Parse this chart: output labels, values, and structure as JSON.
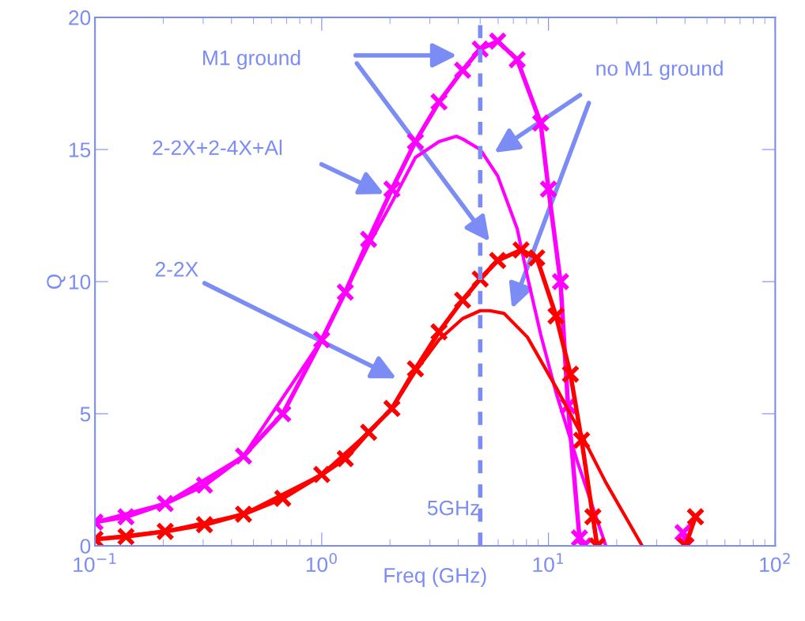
{
  "chart_data": {
    "type": "line",
    "xlabel": "Freq (GHz)",
    "ylabel": "Q",
    "log": "x",
    "xlim": [
      0.1,
      100
    ],
    "ylim": [
      0,
      20
    ],
    "xticks": [
      {
        "value": 0.1,
        "label": "10$^{−1}$"
      },
      {
        "value": 1,
        "label": "10$^{0}$"
      },
      {
        "value": 10,
        "label": "10$^{1}$"
      },
      {
        "value": 100,
        "label": "10$^{2}$"
      }
    ],
    "yticks": [
      0,
      5,
      10,
      15,
      20
    ],
    "grid": false,
    "legend": false,
    "series": [
      {
        "marker": "cross",
        "color": "#ff00ff",
        "x": [
          0.1,
          0.137,
          0.204,
          0.304,
          0.452,
          0.673,
          1.0,
          1.27,
          1.61,
          2.04,
          2.59,
          3.29,
          4.18,
          5.0,
          5.97,
          7.28,
          9.24,
          10,
          11.3,
          12.2,
          13.7,
          14.3,
          20,
          39.2,
          40.4
        ],
        "values": [
          0.9,
          1.1,
          1.6,
          2.3,
          3.4,
          5.0,
          7.8,
          9.6,
          11.6,
          13.5,
          15.3,
          16.8,
          18.0,
          18.8,
          19.1,
          18.4,
          16.0,
          13.5,
          10.0,
          5.3,
          0.3,
          0,
          null,
          0.5,
          0
        ]
      },
      {
        "marker": "none",
        "color": "#ff00ff",
        "x": [
          0.1,
          0.204,
          0.452,
          1.0,
          1.61,
          2.04,
          2.59,
          3.29,
          3.92,
          4.18,
          5.0,
          5.97,
          7.28,
          8.07,
          9.24,
          10.8,
          13.4,
          17.9
        ],
        "values": [
          0.9,
          1.6,
          3.4,
          7.8,
          11.4,
          13.0,
          14.7,
          15.3,
          15.5,
          15.4,
          15.0,
          14.0,
          12.0,
          10.2,
          8.0,
          5.8,
          3.2,
          0
        ]
      },
      {
        "marker": "cross",
        "color": "#ff0000",
        "x": [
          0.1,
          0.137,
          0.204,
          0.304,
          0.452,
          0.673,
          1.0,
          1.27,
          1.61,
          2.04,
          2.59,
          3.29,
          4.18,
          5.0,
          5.97,
          7.57,
          8.88,
          10.8,
          12.5,
          14.0,
          15.7,
          16.4,
          20,
          40.2,
          44.5
        ],
        "values": [
          0.25,
          0.35,
          0.55,
          0.8,
          1.2,
          1.8,
          2.7,
          3.3,
          4.3,
          5.2,
          6.7,
          8.1,
          9.3,
          10.1,
          10.8,
          11.2,
          10.9,
          8.7,
          6.5,
          4.0,
          1.1,
          0,
          null,
          0,
          1.1
        ]
      },
      {
        "marker": "none",
        "color": "#ff0000",
        "x": [
          0.1,
          0.204,
          0.452,
          1.0,
          1.61,
          2.04,
          2.59,
          3.29,
          4.18,
          5.0,
          5.51,
          6.36,
          8.07,
          10.8,
          14.0,
          17.9,
          25.9
        ],
        "values": [
          0.25,
          0.55,
          1.2,
          2.7,
          4.3,
          5.2,
          6.6,
          7.8,
          8.6,
          8.9,
          8.9,
          8.8,
          7.9,
          6.0,
          4.2,
          2.4,
          0
        ]
      }
    ],
    "ref_lines": [
      {
        "axis": "x",
        "value": 5,
        "label": "5GHz",
        "color": "#7b8cf5",
        "line_style": "dashed"
      }
    ],
    "annotations": [
      "M1 ground",
      "2-2X+2-4X+Al",
      "2-2X",
      "no M1 ground"
    ]
  }
}
